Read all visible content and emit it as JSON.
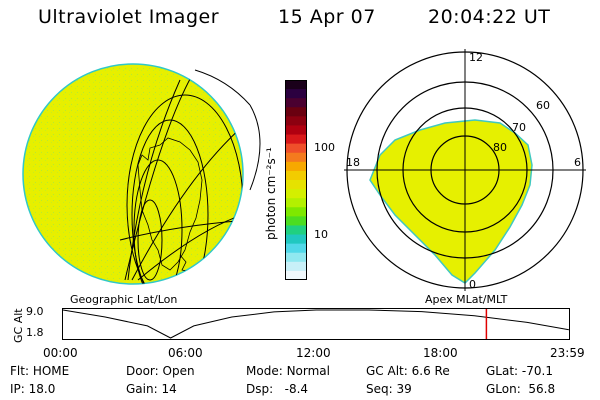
{
  "header": {
    "instrument": "Ultraviolet Imager",
    "date": "15 Apr 07",
    "time": "20:04:22 UT"
  },
  "colorbar": {
    "unit_label": "photon cm⁻²s⁻¹",
    "ticks": [
      "100",
      "10"
    ],
    "colors_top_to_bottom": [
      "#1a001a",
      "#2b0040",
      "#4a0030",
      "#6a0010",
      "#8c0010",
      "#b00010",
      "#d8181a",
      "#ef4f2a",
      "#f47a1e",
      "#f7a800",
      "#f2cc00",
      "#e6e200",
      "#d4ef00",
      "#b3f000",
      "#7ee800",
      "#4cdd20",
      "#20d080",
      "#20c8c0",
      "#50d8e8",
      "#90e8f0",
      "#c8f0f8",
      "#f0f8fc"
    ]
  },
  "left_panel": {
    "label": "Geographic Lat/Lon",
    "fill_color": "#e6f000"
  },
  "right_panel": {
    "label": "Apex MLat/MLT",
    "mlt_labels": {
      "top": "12",
      "left": "18",
      "right": "6",
      "bottom": "0"
    },
    "mlat_labels": [
      "60",
      "70",
      "80"
    ],
    "fill_color": "#e6f000"
  },
  "timeline": {
    "y_axis_label": "GC Alt",
    "y_ticks": [
      "9.0",
      "1.8"
    ],
    "x_ticks": [
      "00:00",
      "06:00",
      "12:00",
      "18:00",
      "23:59"
    ],
    "marker_time_hours": 20.07,
    "marker_color": "#e00000",
    "altitude_re": [
      9.0,
      7.2,
      4.9,
      1.8,
      4.9,
      7.2,
      8.5,
      9.0,
      9.0,
      8.6,
      7.5,
      5.8,
      3.9
    ],
    "altitude_hours": [
      0,
      2,
      4,
      5.1,
      6.2,
      8,
      10,
      12,
      14.5,
      17,
      19.5,
      22,
      23.98
    ]
  },
  "status": {
    "flt_label": "Flt:",
    "flt_value": "HOME",
    "ip_label": "IP:",
    "ip_value": "18.0",
    "door_label": "Door:",
    "door_value": "Open",
    "gain_label": "Gain:",
    "gain_value": "14",
    "mode_label": "Mode:",
    "mode_value": "Normal",
    "dsp_label": "Dsp:",
    "dsp_value": "-8.4",
    "gcalt_label": "GC Alt:",
    "gcalt_value": "6.6 Re",
    "seq_label": "Seq:",
    "seq_value": "39",
    "glat_label": "GLat:",
    "glat_value": "-70.1",
    "glon_label": "GLon:",
    "glon_value": "56.8"
  }
}
